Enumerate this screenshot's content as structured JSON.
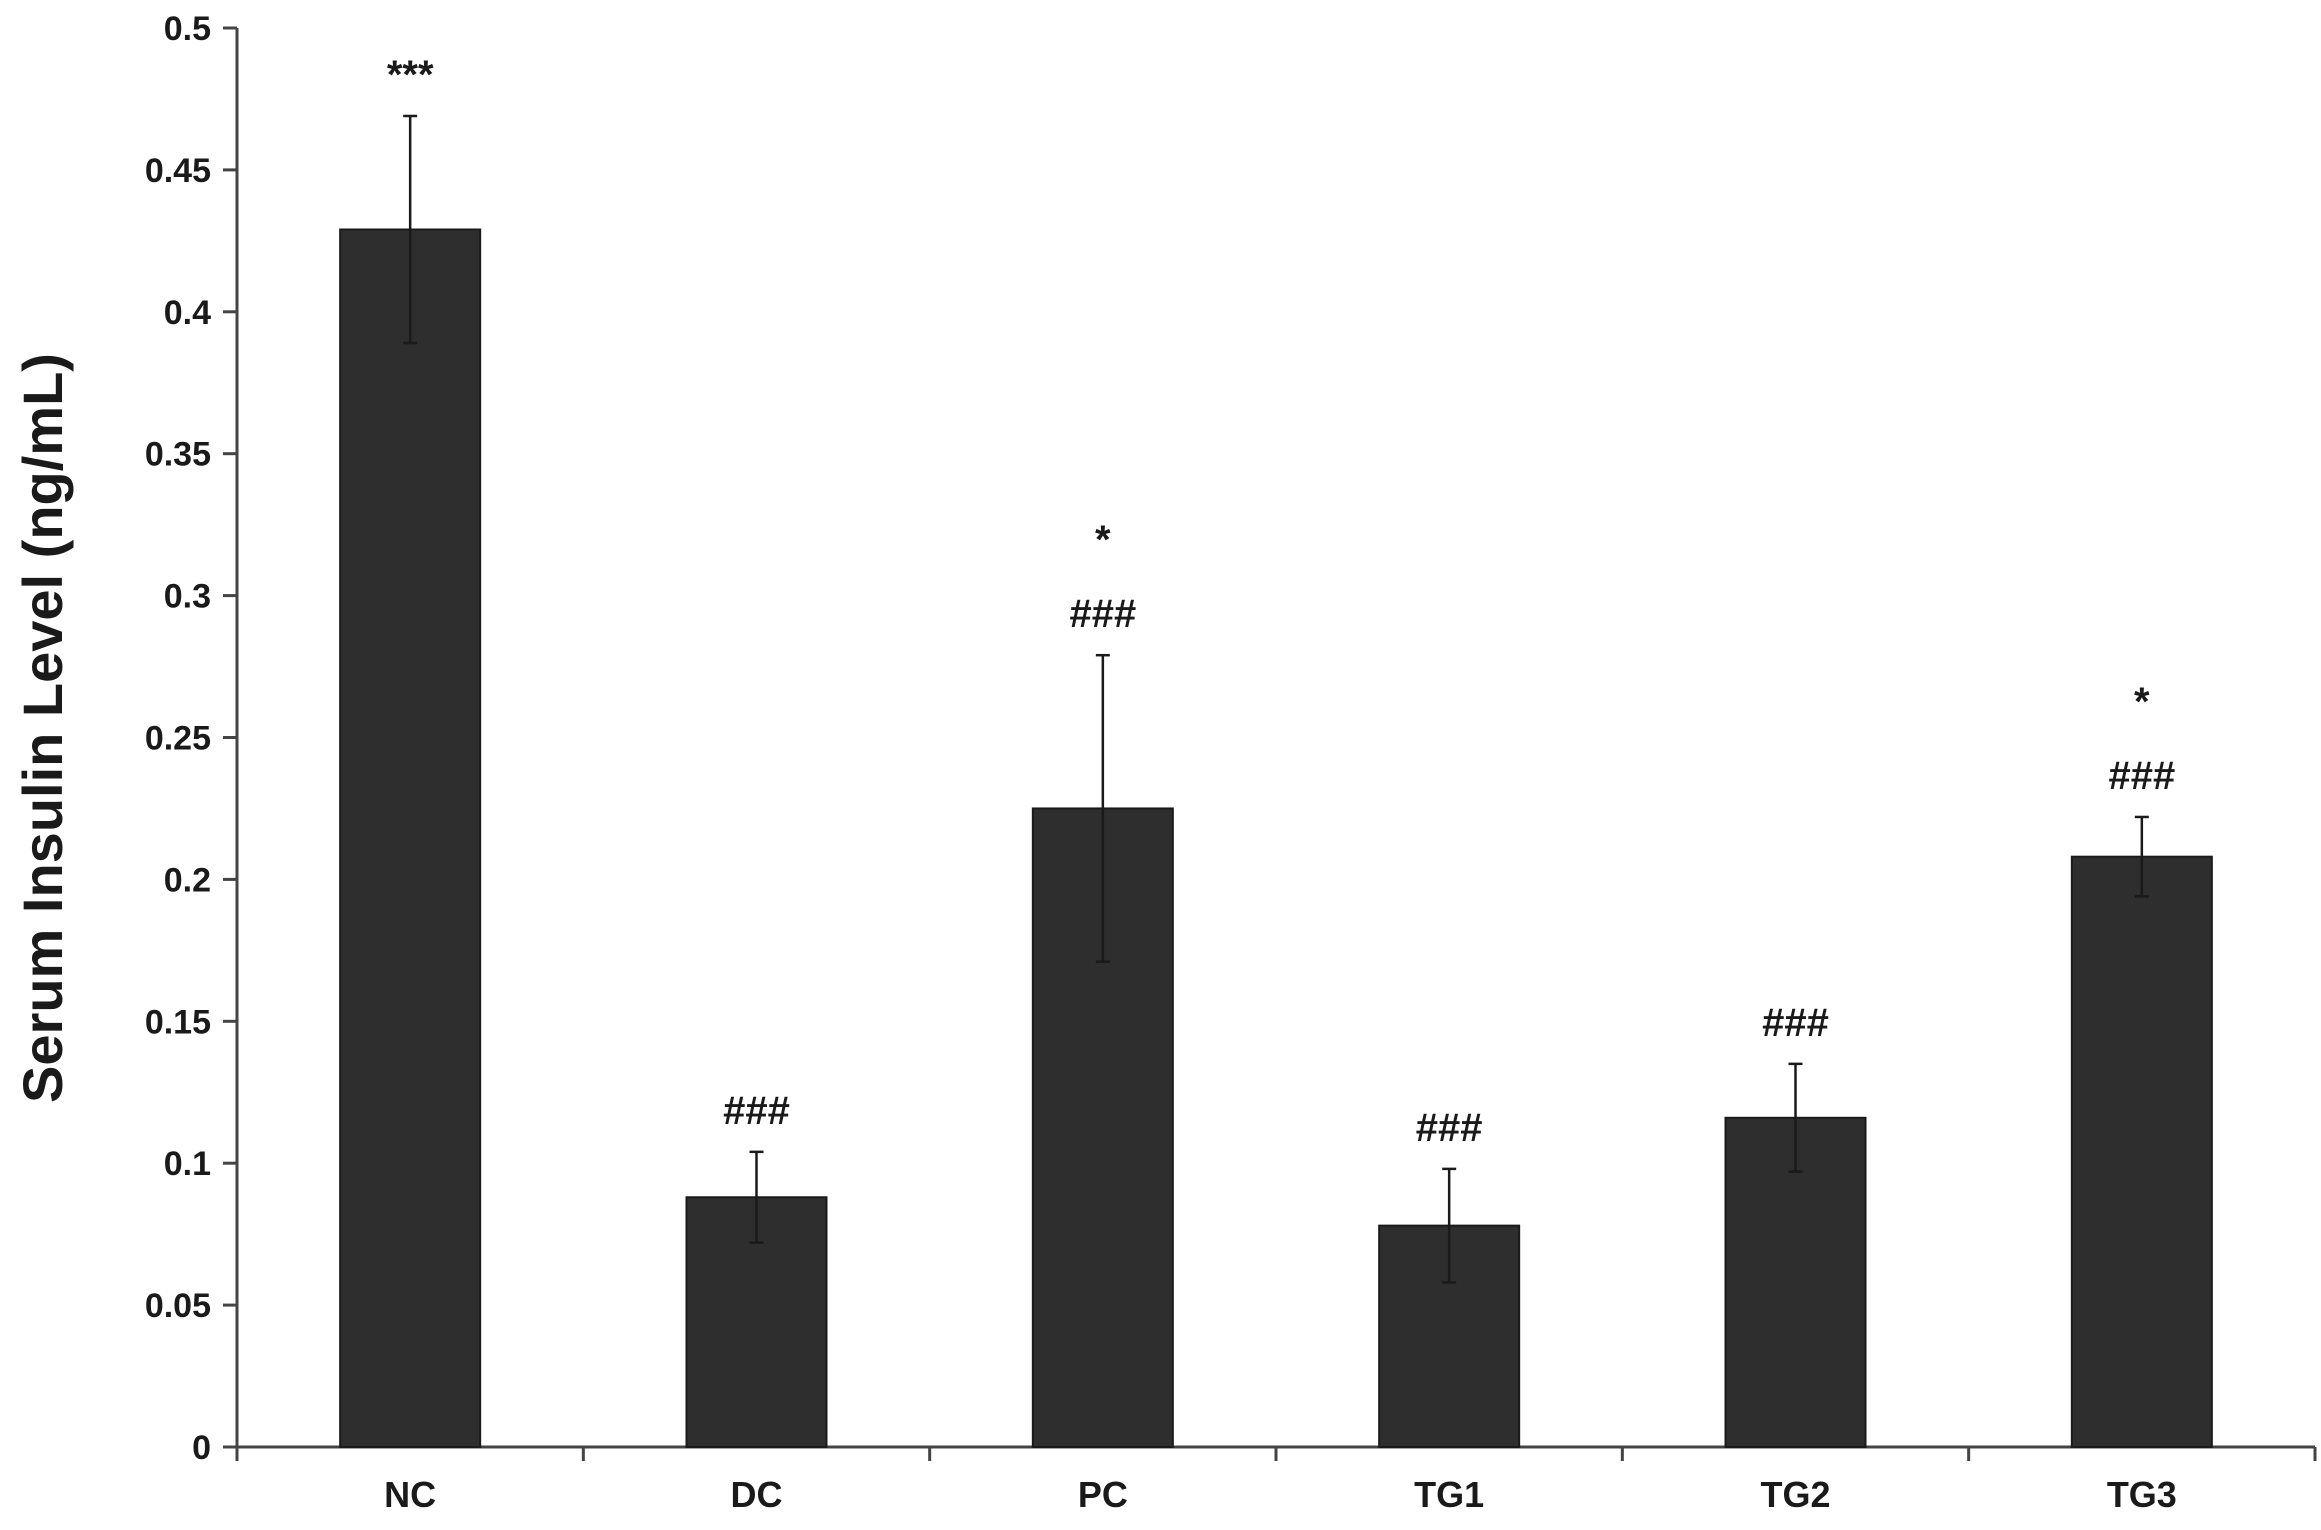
{
  "chart_data": {
    "type": "bar",
    "title": "",
    "xlabel": "",
    "ylabel": "Serum Insulin Level (ng/mL)",
    "ylim": [
      0,
      0.5
    ],
    "yticks": [
      "0",
      "0.05",
      "0.1",
      "0.15",
      "0.2",
      "0.25",
      "0.3",
      "0.35",
      "0.4",
      "0.45",
      "0.5"
    ],
    "ytick_values": [
      0,
      0.05,
      0.1,
      0.15,
      0.2,
      0.25,
      0.3,
      0.35,
      0.4,
      0.45,
      0.5
    ],
    "categories": [
      "NC",
      "DC",
      "PC",
      "TG1",
      "TG2",
      "TG3"
    ],
    "values": [
      0.429,
      0.088,
      0.225,
      0.078,
      0.116,
      0.208
    ],
    "errors": [
      0.04,
      0.016,
      0.054,
      0.02,
      0.019,
      0.014
    ],
    "annotations": [
      [
        "***"
      ],
      [
        "###"
      ],
      [
        "###",
        "*"
      ],
      [
        "###"
      ],
      [
        "###"
      ],
      [
        "###",
        "*"
      ]
    ],
    "bar_color": "#2e2e2e",
    "grid": false,
    "legend": "none"
  }
}
